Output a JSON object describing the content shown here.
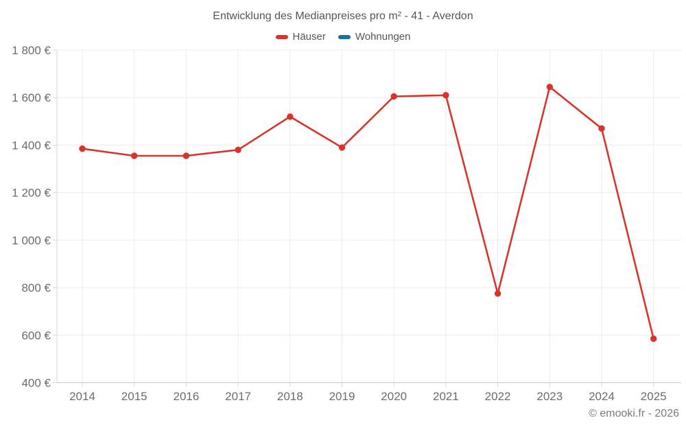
{
  "title": "Entwicklung des Medianpreises pro m² - 41 - Averdon",
  "footer": "© emooki.fr - 2026",
  "legend": [
    {
      "label": "Häuser",
      "color": "#d7342c"
    },
    {
      "label": "Wohnungen",
      "color": "#1a6fa3"
    }
  ],
  "chart_data": {
    "type": "line",
    "title": "Entwicklung des Medianpreises pro m² - 41 - Averdon",
    "categories": [
      "2014",
      "2015",
      "2016",
      "2017",
      "2018",
      "2019",
      "2020",
      "2021",
      "2022",
      "2023",
      "2024",
      "2025"
    ],
    "series": [
      {
        "name": "Häuser",
        "color": "#d7342c",
        "values": [
          1385,
          1355,
          1355,
          1380,
          1520,
          1390,
          1605,
          1610,
          775,
          1645,
          1470,
          585
        ]
      },
      {
        "name": "Wohnungen",
        "color": "#1a6fa3",
        "values": []
      }
    ],
    "xlabel": "",
    "ylabel": "",
    "ylim": [
      400,
      1800
    ],
    "ytick_step": 200,
    "ytick_labels": [
      "400 €",
      "600 €",
      "800 €",
      "1 000 €",
      "1 200 €",
      "1 400 €",
      "1 600 €",
      "1 800 €"
    ],
    "grid": true,
    "legend_position": "top",
    "colors": {
      "grid_line": "#ebebeb",
      "axis_line": "#d4d4d4",
      "axis_label": "#6b6b6b"
    }
  }
}
